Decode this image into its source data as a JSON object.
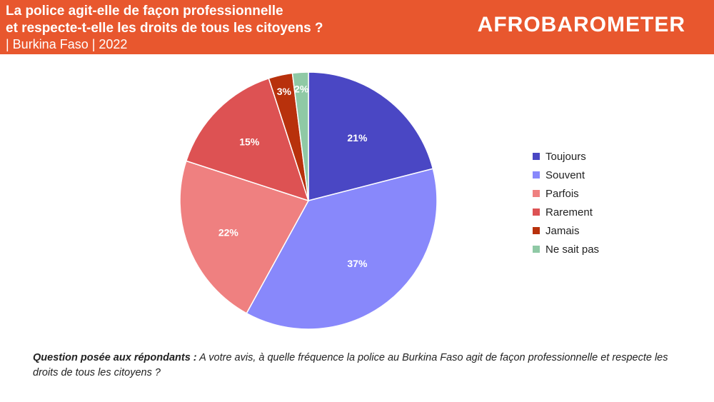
{
  "header": {
    "title_line1": "La police agit-elle de façon professionnelle",
    "title_line2": "et respecte-t-elle les droits de tous les citoyens ?",
    "subtitle": "| Burkina Faso | 2022",
    "brand": "AFROBAROMETER",
    "background_color": "#e8572e"
  },
  "chart_data": {
    "type": "pie",
    "title": "La police agit-elle de façon professionnelle et respecte-t-elle les droits de tous les citoyens ?",
    "categories": [
      "Toujours",
      "Souvent",
      "Parfois",
      "Rarement",
      "Jamais",
      "Ne sait pas"
    ],
    "values": [
      21,
      37,
      22,
      15,
      3,
      2
    ],
    "labels": [
      "21%",
      "37%",
      "22%",
      "15%",
      "3%",
      "2%"
    ],
    "colors": [
      "#4a47c4",
      "#8888fb",
      "#ef8080",
      "#dd5253",
      "#b8310c",
      "#8fc9a5"
    ],
    "start_angle": "12 o'clock, clockwise",
    "legend_position": "right"
  },
  "footer": {
    "question_label": "Question posée aux répondants :",
    "question_text": " A votre avis, à quelle fréquence la police au Burkina Faso agit de façon professionnelle et respecte les droits de tous les citoyens ?"
  }
}
